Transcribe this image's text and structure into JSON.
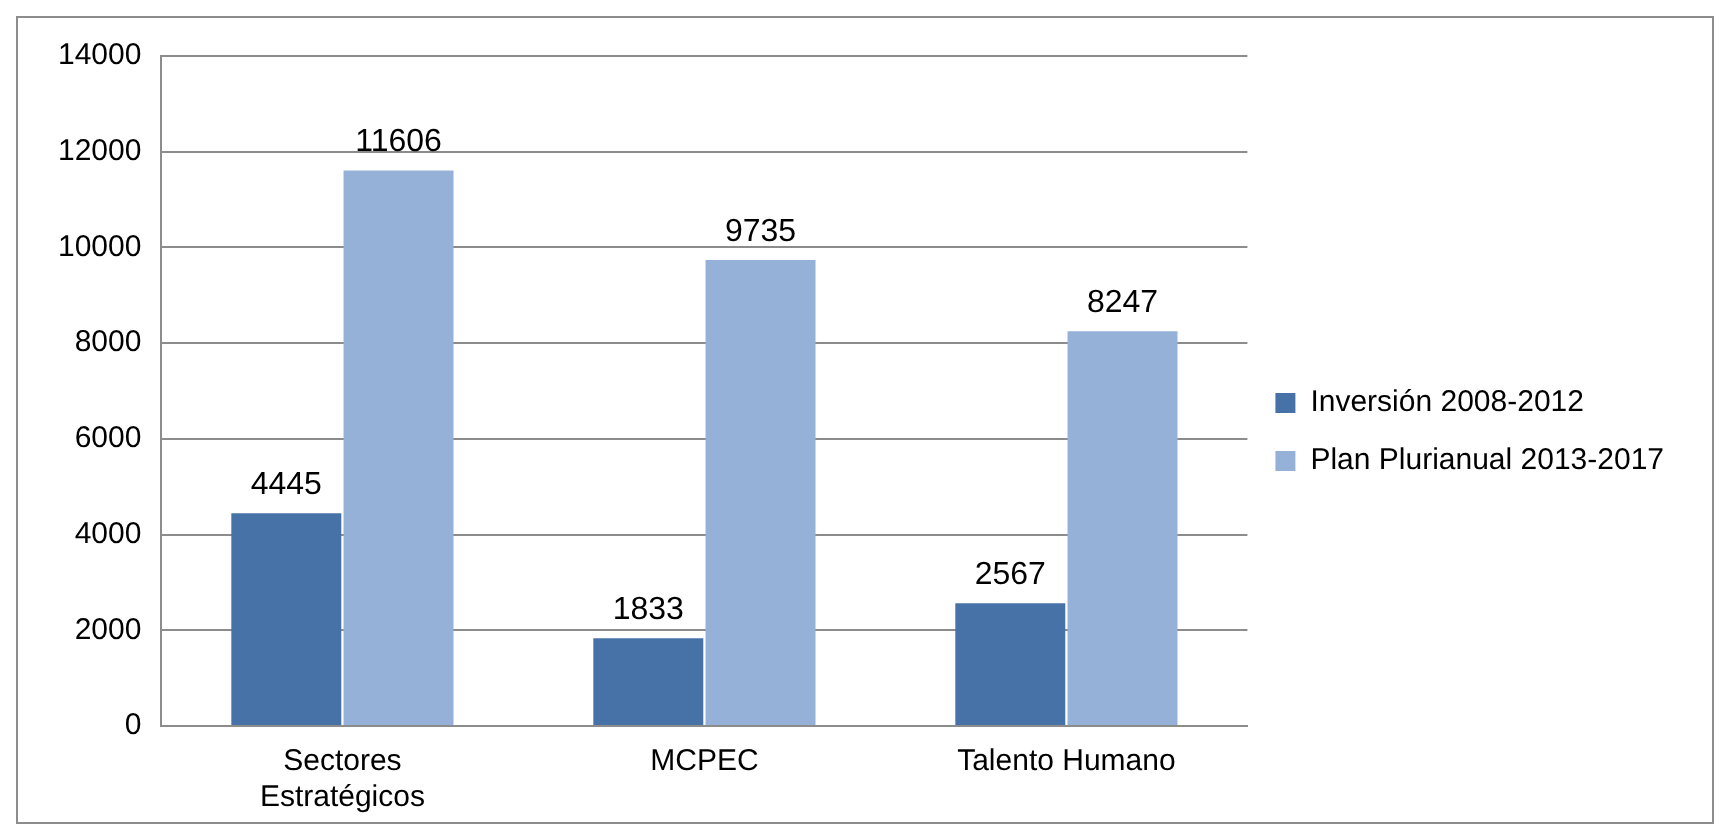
{
  "chart_data": {
    "type": "bar",
    "categories": [
      "Sectores Estratégicos",
      "MCPEC",
      "Talento Humano"
    ],
    "series": [
      {
        "name": "Inversión 2008-2012",
        "color": "#4672a8",
        "values": [
          4445,
          1833,
          2567
        ]
      },
      {
        "name": "Plan Plurianual 2013-2017",
        "color": "#95b1d8",
        "values": [
          11606,
          9735,
          8247
        ]
      }
    ],
    "ylim": [
      0,
      14000
    ],
    "yticks": [
      0,
      2000,
      4000,
      6000,
      8000,
      10000,
      12000,
      14000
    ],
    "grid": "y",
    "legend": "right",
    "data_labels": true
  }
}
